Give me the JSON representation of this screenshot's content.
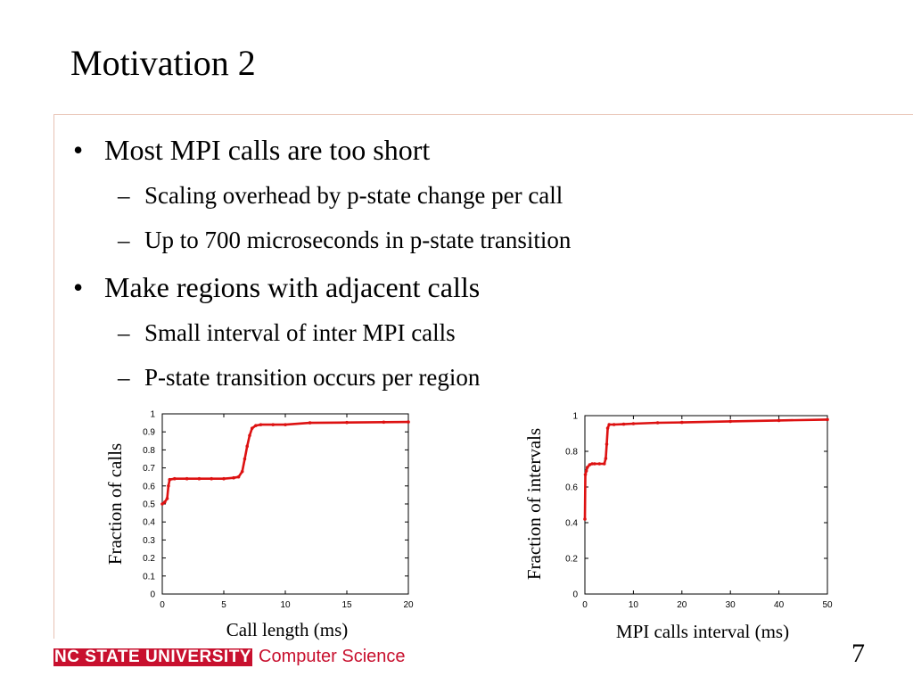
{
  "slide": {
    "title": "Motivation 2",
    "page_number": "7"
  },
  "bullets": [
    {
      "mark": "•",
      "text": "Most MPI calls are too short",
      "subs": [
        {
          "mark": "–",
          "text": "Scaling overhead by p-state change per call"
        },
        {
          "mark": "–",
          "text": "Up to 700 microseconds in p-state transition"
        }
      ]
    },
    {
      "mark": "•",
      "text": "Make regions with adjacent calls",
      "subs": [
        {
          "mark": "–",
          "text": "Small interval of inter MPI calls"
        },
        {
          "mark": "–",
          "text": "P-state transition occurs per region"
        }
      ]
    }
  ],
  "footer": {
    "university": "NC STATE UNIVERSITY",
    "department": "Computer Science",
    "brand_color": "#c8102e"
  },
  "chart_data": [
    {
      "type": "line",
      "xlabel": "Call length (ms)",
      "ylabel": "Fraction of calls",
      "xlim": [
        0,
        20
      ],
      "ylim": [
        0,
        1
      ],
      "xticks": [
        0,
        5,
        10,
        15,
        20
      ],
      "yticks": [
        0,
        0.1,
        0.2,
        0.3,
        0.4,
        0.5,
        0.6,
        0.7,
        0.8,
        0.9,
        1
      ],
      "grid": false,
      "series_color": "#dd1111",
      "series": [
        {
          "x": [
            0,
            0.2,
            0.4,
            0.5,
            0.6,
            1,
            2,
            3,
            4,
            5,
            5.8,
            6.2,
            6.5,
            6.7,
            6.9,
            7.1,
            7.3,
            7.6,
            8,
            9,
            10,
            12,
            15,
            18,
            20
          ],
          "y": [
            0.5,
            0.51,
            0.53,
            0.6,
            0.635,
            0.64,
            0.64,
            0.64,
            0.64,
            0.64,
            0.645,
            0.65,
            0.68,
            0.75,
            0.82,
            0.88,
            0.92,
            0.935,
            0.94,
            0.94,
            0.94,
            0.95,
            0.952,
            0.954,
            0.955
          ]
        }
      ]
    },
    {
      "type": "line",
      "xlabel": "MPI calls interval (ms)",
      "ylabel": "Fraction of intervals",
      "xlim": [
        0,
        50
      ],
      "ylim": [
        0,
        1
      ],
      "xticks": [
        0,
        10,
        20,
        30,
        40,
        50
      ],
      "yticks": [
        0,
        0.2,
        0.4,
        0.6,
        0.8,
        1
      ],
      "grid": false,
      "series_color": "#dd1111",
      "series": [
        {
          "x": [
            0,
            0.1,
            0.3,
            0.5,
            1,
            1.5,
            2,
            3,
            4,
            4.3,
            4.5,
            4.7,
            5,
            6,
            8,
            10,
            15,
            20,
            30,
            40,
            50
          ],
          "y": [
            0.42,
            0.67,
            0.69,
            0.71,
            0.725,
            0.73,
            0.73,
            0.73,
            0.73,
            0.76,
            0.84,
            0.93,
            0.95,
            0.95,
            0.952,
            0.955,
            0.96,
            0.962,
            0.968,
            0.973,
            0.978
          ]
        }
      ]
    }
  ]
}
